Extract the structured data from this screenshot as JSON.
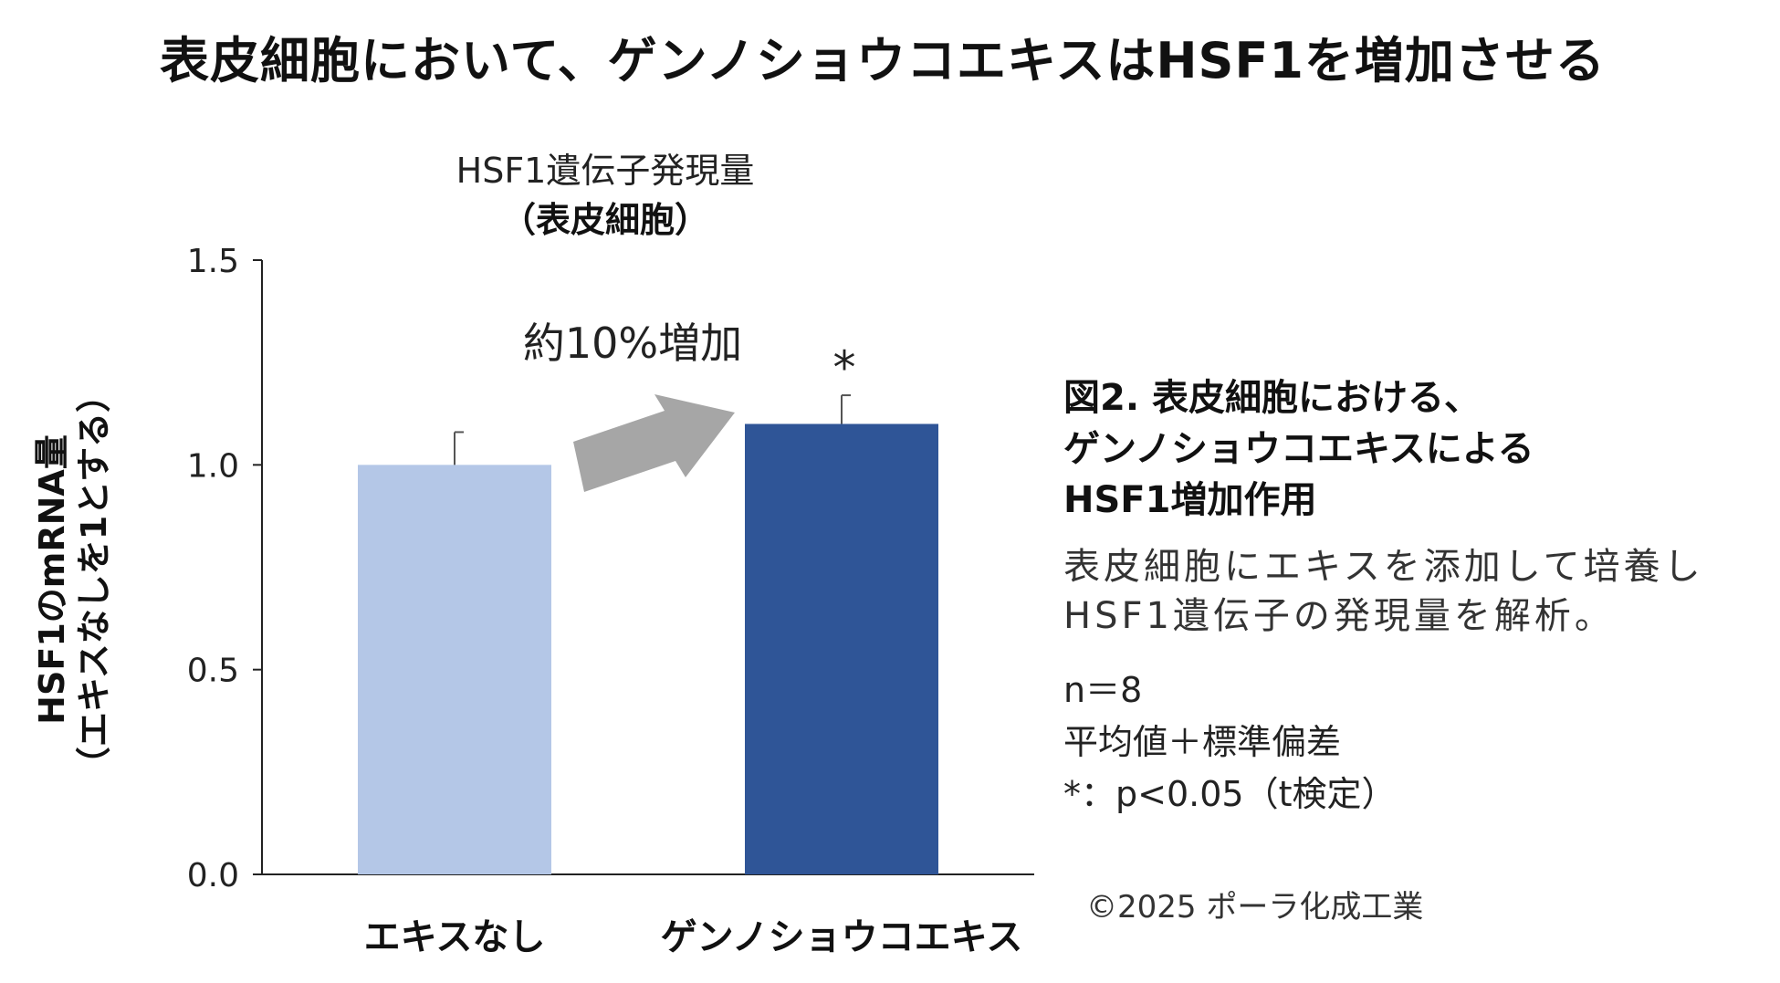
{
  "main_title": "表皮細胞において、ゲンノショウコエキスはHSF1を増加させる",
  "chart_data": {
    "type": "bar",
    "title": [
      "HSF1遺伝子発現量",
      "（表皮細胞）"
    ],
    "ylabel": [
      "HSF1のmRNA量",
      "（エキスなしを1とする）"
    ],
    "xlabel": "",
    "categories": [
      "エキスなし",
      "ゲンノショウコエキス"
    ],
    "values": [
      1.0,
      1.1
    ],
    "error": [
      0.08,
      0.07
    ],
    "colors": [
      "#b4c7e7",
      "#2f5597"
    ],
    "ylim": [
      0,
      1.5
    ],
    "yticks": [
      "0.0",
      "0.5",
      "1.0",
      "1.5"
    ],
    "grid": false,
    "annotation": "約10%増加",
    "significance": "*"
  },
  "caption": {
    "figure_lines": [
      "図2. 表皮細胞における、",
      "ゲンノショウコエキスによる",
      "HSF1増加作用"
    ],
    "description_lines": [
      "表皮細胞にエキスを添加して培養し",
      "HSF1遺伝子の発現量を解析。"
    ],
    "notes": [
      "n＝8",
      "平均値＋標準偏差",
      "*：p<0.05（t検定）"
    ]
  },
  "copyright": "©2025  ポーラ化成工業"
}
